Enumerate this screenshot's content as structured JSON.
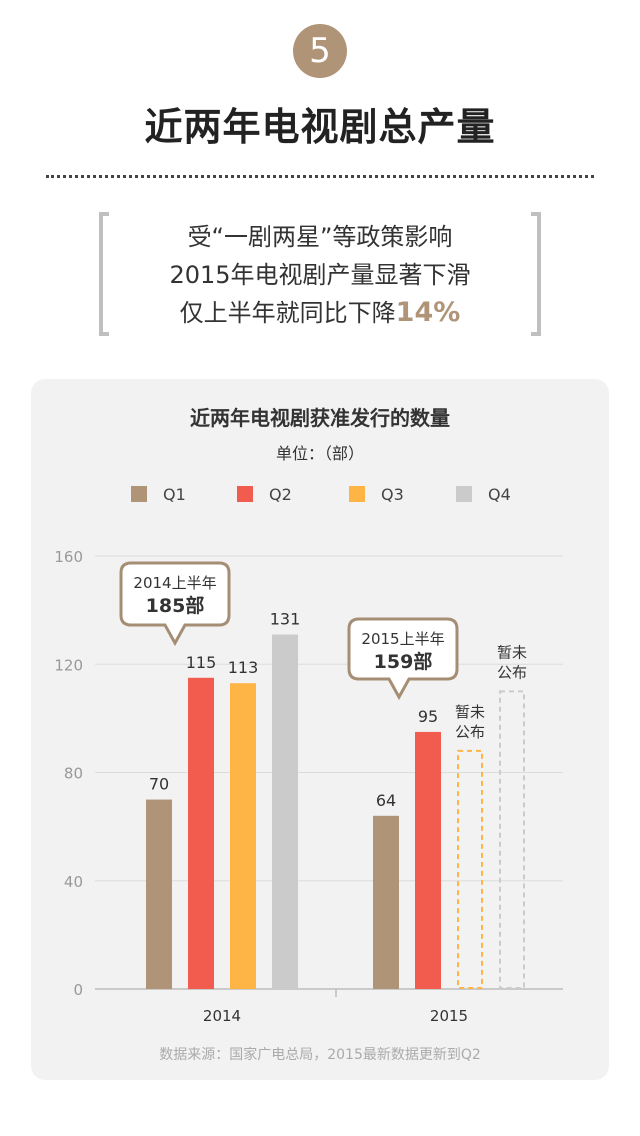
{
  "header": {
    "step_number": "5",
    "title": "近两年电视剧总产量"
  },
  "intro": {
    "line1": "受“一剧两星”等政策影响",
    "line2": "2015年电视剧产量显著下滑",
    "line3_prefix": "仅上半年就同比下降",
    "line3_highlight": "14%"
  },
  "chart_data": {
    "type": "bar",
    "title": "近两年电视剧获准发行的数量",
    "subtitle": "单位：（部）",
    "categories": [
      "2014",
      "2015"
    ],
    "series": [
      {
        "name": "Q1",
        "color": "#b09478",
        "values": [
          70,
          64
        ]
      },
      {
        "name": "Q2",
        "color": "#f25c4e",
        "values": [
          115,
          95
        ]
      },
      {
        "name": "Q3",
        "color": "#ffb545",
        "values": [
          113,
          null
        ]
      },
      {
        "name": "Q4",
        "color": "#cbcbcb",
        "values": [
          131,
          null
        ]
      }
    ],
    "placeholder_estimates": [
      {
        "category": "2015",
        "series": "Q3",
        "value": 88,
        "label_line1": "暂未",
        "label_line2": "公布"
      },
      {
        "category": "2015",
        "series": "Q4",
        "value": 110,
        "label_line1": "暂未",
        "label_line2": "公布"
      }
    ],
    "callouts": [
      {
        "category": "2014",
        "line1": "2014上半年",
        "line2": "185部"
      },
      {
        "category": "2015",
        "line1": "2015上半年",
        "line2": "159部"
      }
    ],
    "y_ticks": [
      "160",
      "120",
      "80",
      "40",
      "0"
    ],
    "ylim": [
      0,
      160
    ],
    "grid": true,
    "legend_position": "top",
    "source": "数据来源：国家广电总局，2015最新数据更新到Q2"
  }
}
